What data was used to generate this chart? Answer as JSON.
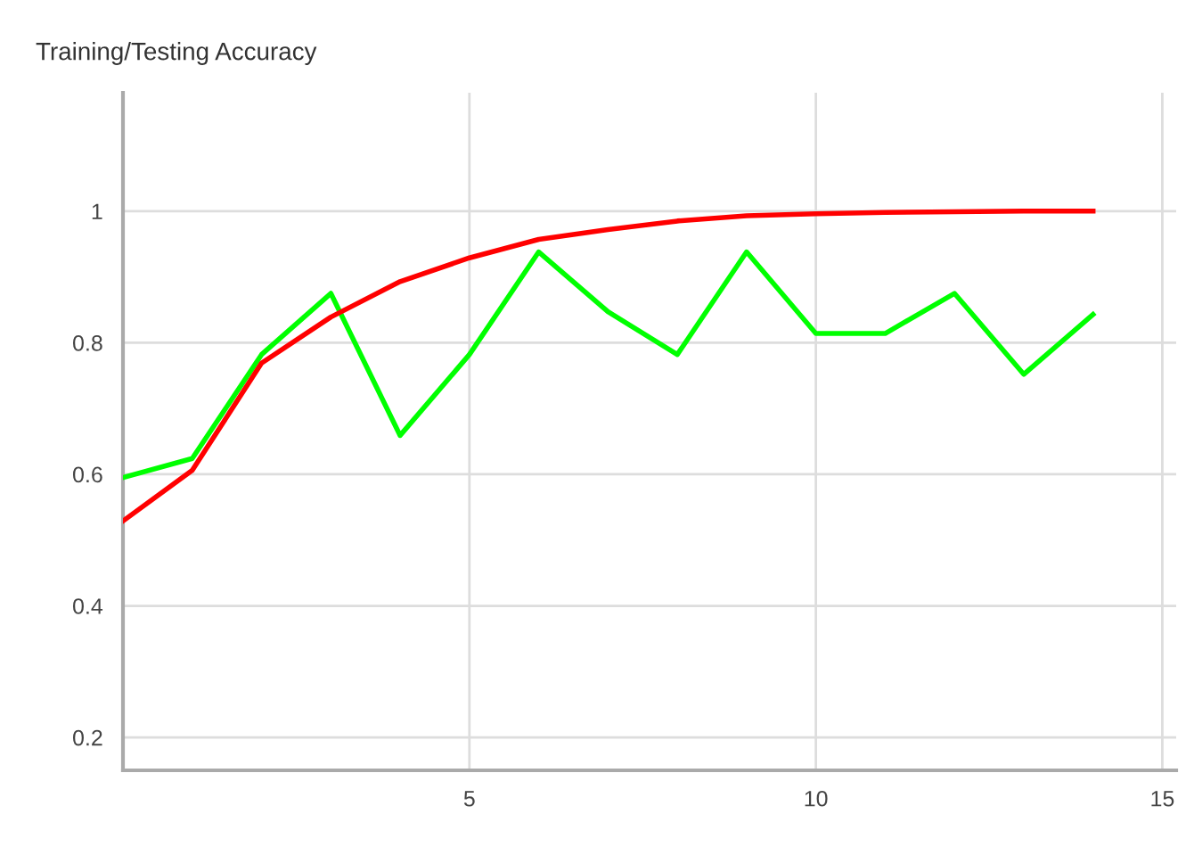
{
  "chart_data": {
    "type": "line",
    "title": "Training/Testing Accuracy",
    "x": [
      0,
      1,
      2,
      3,
      4,
      5,
      6,
      7,
      8,
      9,
      10,
      11,
      12,
      13,
      14
    ],
    "series": [
      {
        "color": "#00ff00",
        "values": [
          0.595,
          0.624,
          0.782,
          0.875,
          0.659,
          0.782,
          0.938,
          0.847,
          0.782,
          0.938,
          0.814,
          0.814,
          0.875,
          0.752,
          0.843
        ]
      },
      {
        "color": "#ff0000",
        "values": [
          0.529,
          0.606,
          0.769,
          0.839,
          0.893,
          0.929,
          0.957,
          0.972,
          0.985,
          0.993,
          0.996,
          0.998,
          0.999,
          1.0,
          1.0
        ]
      }
    ],
    "xlim": [
      0,
      15.2
    ],
    "xticks": [
      5,
      10,
      15
    ],
    "ylim": [
      0.15,
      1.18
    ],
    "yticks": [
      0.2,
      0.4,
      0.6,
      0.8,
      1
    ],
    "grid": true,
    "marker": "none",
    "line_style": "solid"
  }
}
